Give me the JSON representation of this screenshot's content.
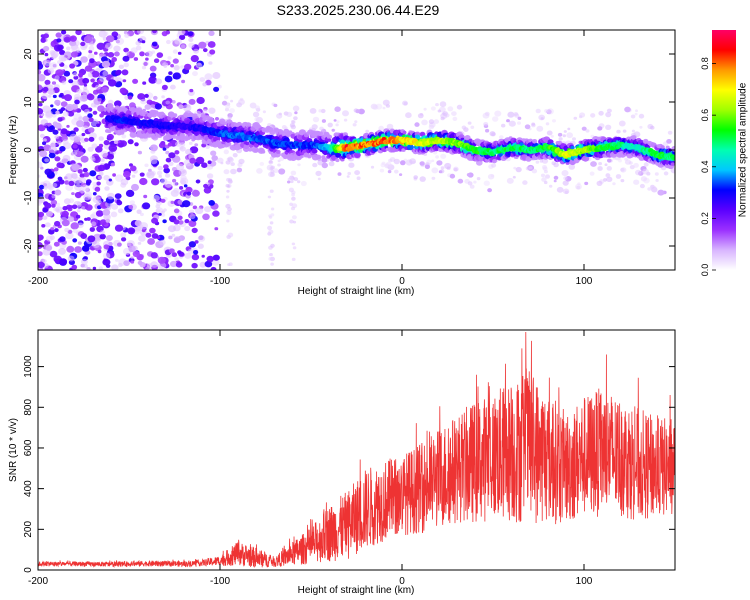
{
  "title": "S233.2025.230.06.44.E29",
  "chart_data": [
    {
      "type": "heatmap",
      "name": "spectrogram",
      "xlabel": "Height of straight line (km)",
      "ylabel": "Frequency (Hz)",
      "xlim": [
        -200,
        150
      ],
      "ylim": [
        -25,
        25
      ],
      "x_ticks": [
        -200,
        -100,
        0,
        100
      ],
      "y_ticks": [
        -20,
        -10,
        0,
        10,
        20
      ],
      "colorbar": {
        "label": "Normalized spectral amplitude",
        "range": [
          0,
          0.93
        ],
        "ticks": [
          0.0,
          0.2,
          0.4,
          0.6,
          0.8
        ],
        "tick_labels": [
          "0.0",
          "0.2",
          "0.4",
          "0.6",
          "0.8"
        ],
        "colormap": [
          "#ffffff",
          "#d8b4ff",
          "#9b30ff",
          "#5a00ff",
          "#0000ff",
          "#00c8ff",
          "#00ffb0",
          "#00ff00",
          "#a0ff00",
          "#ffff00",
          "#ff9900",
          "#ff0000",
          "#ff0066"
        ]
      },
      "ridge": [
        {
          "x": -160,
          "f": 6.5,
          "a": 0.3
        },
        {
          "x": -150,
          "f": 6.0,
          "a": 0.32
        },
        {
          "x": -140,
          "f": 5.5,
          "a": 0.3
        },
        {
          "x": -130,
          "f": 5.0,
          "a": 0.3
        },
        {
          "x": -120,
          "f": 5.0,
          "a": 0.28
        },
        {
          "x": -110,
          "f": 4.5,
          "a": 0.3
        },
        {
          "x": -100,
          "f": 3.5,
          "a": 0.34
        },
        {
          "x": -90,
          "f": 3.0,
          "a": 0.36
        },
        {
          "x": -80,
          "f": 2.5,
          "a": 0.35
        },
        {
          "x": -70,
          "f": 1.5,
          "a": 0.34
        },
        {
          "x": -60,
          "f": 1.0,
          "a": 0.34
        },
        {
          "x": -50,
          "f": 1.0,
          "a": 0.33
        },
        {
          "x": -40,
          "f": 0.5,
          "a": 0.4
        },
        {
          "x": -30,
          "f": 0.5,
          "a": 0.85
        },
        {
          "x": -20,
          "f": 1.0,
          "a": 0.8
        },
        {
          "x": -10,
          "f": 2.0,
          "a": 0.82
        },
        {
          "x": 0,
          "f": 2.0,
          "a": 0.75
        },
        {
          "x": 10,
          "f": 1.5,
          "a": 0.7
        },
        {
          "x": 20,
          "f": 2.0,
          "a": 0.65
        },
        {
          "x": 30,
          "f": 1.5,
          "a": 0.62
        },
        {
          "x": 40,
          "f": 0.0,
          "a": 0.55
        },
        {
          "x": 50,
          "f": -0.5,
          "a": 0.5
        },
        {
          "x": 60,
          "f": 0.5,
          "a": 0.55
        },
        {
          "x": 70,
          "f": 0.0,
          "a": 0.5
        },
        {
          "x": 80,
          "f": 0.5,
          "a": 0.55
        },
        {
          "x": 90,
          "f": -1.0,
          "a": 0.7
        },
        {
          "x": 100,
          "f": 0.0,
          "a": 0.65
        },
        {
          "x": 110,
          "f": 0.5,
          "a": 0.55
        },
        {
          "x": 120,
          "f": 1.0,
          "a": 0.5
        },
        {
          "x": 130,
          "f": 0.5,
          "a": 0.45
        },
        {
          "x": 140,
          "f": -1.0,
          "a": 0.55
        },
        {
          "x": 150,
          "f": -1.5,
          "a": 0.5
        }
      ]
    },
    {
      "type": "line",
      "name": "snr",
      "xlabel": "Height of straight line (km)",
      "ylabel": "SNR (10 * v/v)",
      "xlim": [
        -200,
        150
      ],
      "ylim": [
        0,
        1180
      ],
      "x_ticks": [
        -200,
        -100,
        0,
        100
      ],
      "y_ticks": [
        0,
        200,
        400,
        600,
        800,
        1000
      ],
      "color": "#ee3333",
      "envelope": [
        {
          "x": -200,
          "mean": 30,
          "spread": 12
        },
        {
          "x": -180,
          "mean": 30,
          "spread": 12
        },
        {
          "x": -160,
          "mean": 28,
          "spread": 12
        },
        {
          "x": -140,
          "mean": 32,
          "spread": 14
        },
        {
          "x": -120,
          "mean": 30,
          "spread": 14
        },
        {
          "x": -110,
          "mean": 35,
          "spread": 16
        },
        {
          "x": -100,
          "mean": 45,
          "spread": 25
        },
        {
          "x": -90,
          "mean": 80,
          "spread": 60
        },
        {
          "x": -80,
          "mean": 60,
          "spread": 50
        },
        {
          "x": -70,
          "mean": 40,
          "spread": 25
        },
        {
          "x": -60,
          "mean": 80,
          "spread": 60
        },
        {
          "x": -50,
          "mean": 120,
          "spread": 90
        },
        {
          "x": -40,
          "mean": 180,
          "spread": 140
        },
        {
          "x": -30,
          "mean": 220,
          "spread": 170
        },
        {
          "x": -20,
          "mean": 300,
          "spread": 200
        },
        {
          "x": -10,
          "mean": 340,
          "spread": 200
        },
        {
          "x": 0,
          "mean": 370,
          "spread": 200
        },
        {
          "x": 10,
          "mean": 400,
          "spread": 220
        },
        {
          "x": 20,
          "mean": 450,
          "spread": 250
        },
        {
          "x": 30,
          "mean": 500,
          "spread": 270
        },
        {
          "x": 40,
          "mean": 530,
          "spread": 300
        },
        {
          "x": 50,
          "mean": 560,
          "spread": 320
        },
        {
          "x": 60,
          "mean": 580,
          "spread": 350
        },
        {
          "x": 70,
          "mean": 600,
          "spread": 380
        },
        {
          "x": 80,
          "mean": 560,
          "spread": 330
        },
        {
          "x": 90,
          "mean": 500,
          "spread": 280
        },
        {
          "x": 100,
          "mean": 560,
          "spread": 300
        },
        {
          "x": 110,
          "mean": 580,
          "spread": 320
        },
        {
          "x": 120,
          "mean": 560,
          "spread": 300
        },
        {
          "x": 130,
          "mean": 520,
          "spread": 280
        },
        {
          "x": 140,
          "mean": 500,
          "spread": 250
        },
        {
          "x": 150,
          "mean": 510,
          "spread": 240
        }
      ],
      "peak": {
        "x": 68,
        "y": 1170
      }
    }
  ]
}
